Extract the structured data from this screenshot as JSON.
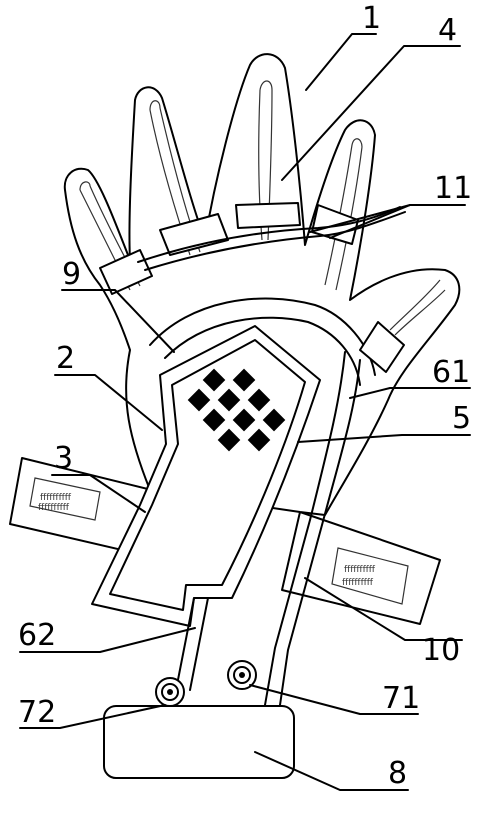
{
  "figure": {
    "labels": {
      "l1": "1",
      "l4": "4",
      "l11": "11",
      "l9": "9",
      "l2": "2",
      "l61": "61",
      "l5": "5",
      "l3": "3",
      "l62": "62",
      "l10": "10",
      "l72": "72",
      "l71": "71",
      "l8": "8"
    },
    "colors": {
      "ink": "#000000",
      "paper": "#ffffff"
    }
  }
}
